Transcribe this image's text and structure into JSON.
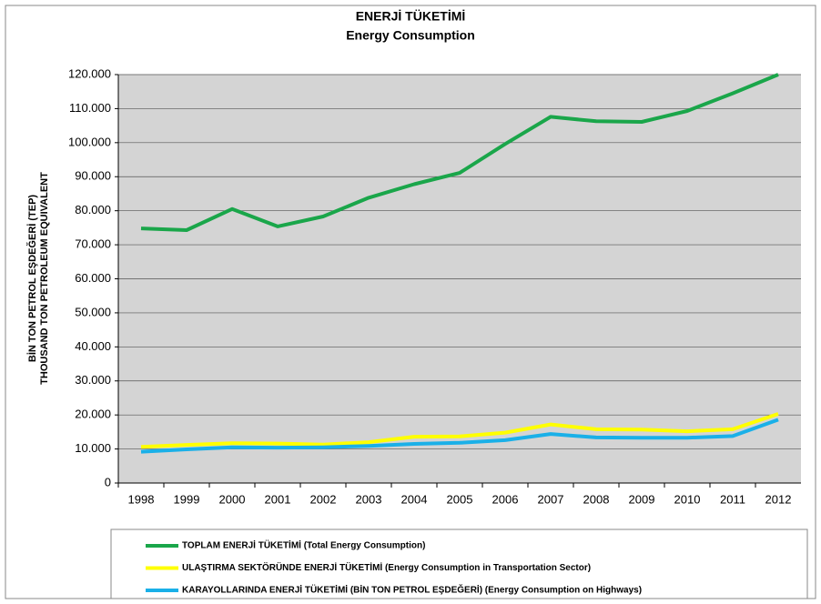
{
  "chart_data": {
    "type": "line",
    "title": "ENERJİ TÜKETİMİ",
    "subtitle": "Energy Consumption",
    "y_label": [
      "BİN TON PETROL EŞDEĞERİ (TEP)",
      "THOUSAND TON PETROLEUM EQUIVALENT"
    ],
    "categories": [
      "1998",
      "1999",
      "2000",
      "2001",
      "2002",
      "2003",
      "2004",
      "2005",
      "2006",
      "2007",
      "2008",
      "2009",
      "2010",
      "2011",
      "2012"
    ],
    "series": [
      {
        "name": "TOPLAM ENERJİ TÜKETİMİ (Total Energy Consumption)",
        "color": "#1aa64a",
        "values": [
          74800,
          74300,
          80500,
          75400,
          78300,
          83800,
          87800,
          91100,
          99600,
          107600,
          106300,
          106100,
          109300,
          114500,
          120000
        ]
      },
      {
        "name": "ULAŞTIRMA SEKTÖRÜNDE ENERJİ TÜKETİMİ (Energy Consumption in Transportation Sector)",
        "color": "#ffff00",
        "values": [
          10600,
          11200,
          11700,
          11600,
          11300,
          12000,
          13600,
          13700,
          14800,
          17200,
          15800,
          15700,
          15200,
          15800,
          20300
        ]
      },
      {
        "name": "KARAYOLLARINDA ENERJİ TÜKETİMİ (BİN TON PETROL EŞDEĞERİ) (Energy Consumption on Highways)",
        "color": "#1ab0e8",
        "values": [
          9200,
          9900,
          10500,
          10400,
          10500,
          10900,
          11500,
          11800,
          12600,
          14400,
          13400,
          13300,
          13300,
          13800,
          18600
        ]
      }
    ],
    "ylim": [
      0,
      120000
    ],
    "yticks": [
      0,
      {
        "value": 10000,
        "label": "10.000"
      },
      {
        "value": 20000,
        "label": "20.000"
      },
      {
        "value": 30000,
        "label": "30.000"
      },
      {
        "value": 40000,
        "label": "40.000"
      },
      {
        "value": 50000,
        "label": "50.000"
      },
      {
        "value": 60000,
        "label": "60.000"
      },
      {
        "value": 70000,
        "label": "70.000"
      },
      {
        "value": 80000,
        "label": "80.000"
      },
      {
        "value": 90000,
        "label": "90.000"
      },
      {
        "value": 100000,
        "label": "100.000"
      },
      {
        "value": 110000,
        "label": "110.000"
      },
      {
        "value": 120000,
        "label": "120.000"
      }
    ],
    "grid": true
  }
}
